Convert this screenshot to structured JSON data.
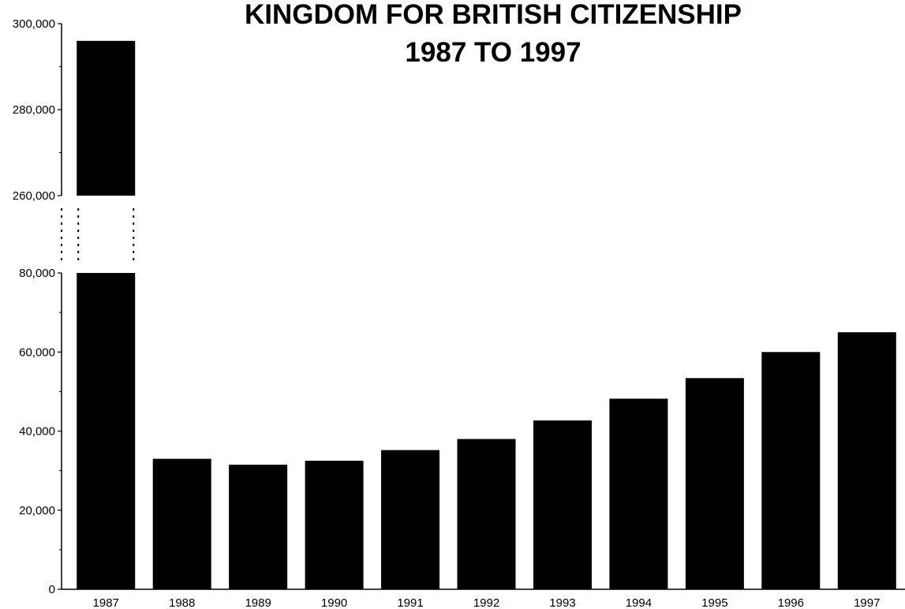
{
  "chart_data": {
    "type": "bar",
    "title_lines": [
      "KINGDOM FOR BRITISH CITIZENSHIP",
      "1987 TO 1997"
    ],
    "categories": [
      "1987",
      "1988",
      "1989",
      "1990",
      "1991",
      "1992",
      "1993",
      "1994",
      "1995",
      "1996",
      "1997"
    ],
    "values": [
      296000,
      33000,
      31500,
      32500,
      35200,
      38000,
      42700,
      48200,
      53400,
      60000,
      65000
    ],
    "bar_color": "#000000",
    "axis_break": {
      "lower_max": 80000,
      "upper_min": 260000
    },
    "lower_axis": {
      "ylim": [
        0,
        80000
      ],
      "tick_values": [
        0,
        20000,
        40000,
        60000,
        80000
      ],
      "tick_labels": [
        "0",
        "20,000",
        "40,000",
        "60,000",
        "80,000"
      ]
    },
    "upper_axis": {
      "ylim": [
        260000,
        300000
      ],
      "tick_values": [
        260000,
        280000,
        300000
      ],
      "tick_labels": [
        "260,000",
        "280,000",
        "300,000"
      ]
    },
    "grid": false,
    "legend": "none"
  }
}
